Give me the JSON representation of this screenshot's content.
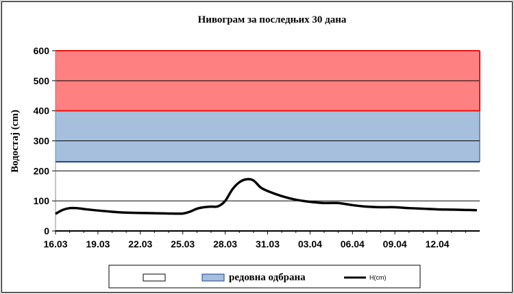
{
  "chart_data": {
    "type": "line",
    "title": "Нивограм за последњих 30 дана",
    "ylabel": "Водостај (cm)",
    "xlabel": "",
    "ylim": [
      0,
      600
    ],
    "yticks": [
      0,
      100,
      200,
      300,
      400,
      500,
      600
    ],
    "grid": true,
    "x_tick_labels": [
      "16.03",
      "19.03",
      "22.03",
      "25.03",
      "28.03",
      "31.03",
      "03.04",
      "06.04",
      "09.04",
      "12.04"
    ],
    "bands": [
      {
        "label": "",
        "from": 0,
        "to": 230,
        "color": "#ffffff",
        "line_color": "#ffffff"
      },
      {
        "label": "редовна одбрана",
        "from": 230,
        "to": 400,
        "color": "#a6bfdd",
        "line_color": "#1f3f8f"
      },
      {
        "label": "",
        "from": 400,
        "to": 600,
        "color": "#ff8080",
        "line_color": "#ee1111"
      }
    ],
    "series": [
      {
        "name": "H(cm)",
        "color": "#000000",
        "x_days": [
          0,
          0.5,
          1,
          1.5,
          2,
          3,
          4,
          5,
          6,
          7,
          8,
          9,
          9.5,
          10,
          10.5,
          11,
          11.5,
          12,
          12.5,
          13,
          13.5,
          14,
          14.5,
          15,
          16,
          17,
          18,
          19,
          20,
          21,
          22,
          23,
          24,
          25,
          26,
          27,
          28,
          29,
          29.8
        ],
        "values": [
          57,
          70,
          76,
          76,
          73,
          68,
          64,
          61,
          60,
          59,
          58,
          58,
          64,
          74,
          79,
          81,
          82,
          100,
          138,
          162,
          172,
          168,
          145,
          133,
          116,
          104,
          97,
          93,
          93,
          86,
          81,
          79,
          79,
          76,
          74,
          72,
          71,
          70,
          69
        ]
      }
    ],
    "legend": {
      "position": "bottom"
    }
  }
}
